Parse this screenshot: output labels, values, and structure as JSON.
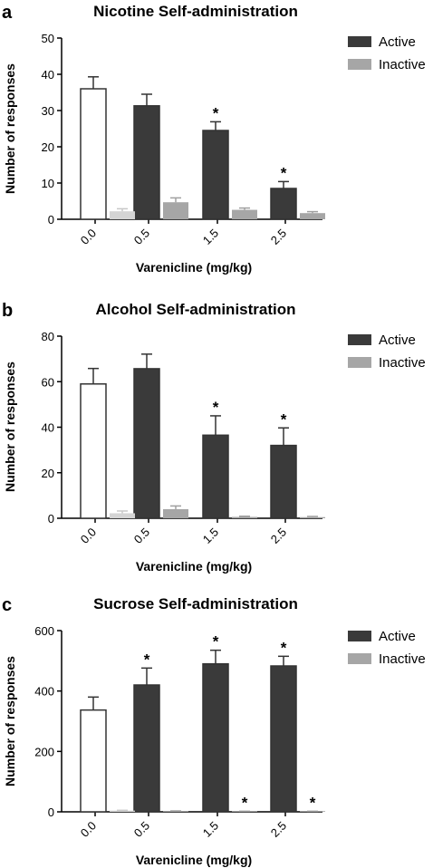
{
  "chart_data": [
    {
      "type": "bar",
      "panel": "a",
      "title": "Nicotine Self-administration",
      "xlabel": "Varenicline (mg/kg)",
      "ylabel": "Number of responses",
      "ylim": [
        0,
        50
      ],
      "yticks": [
        0,
        10,
        20,
        30,
        40,
        50
      ],
      "categories": [
        "0.0",
        "0.5",
        "1.5",
        "2.5"
      ],
      "legend": "right",
      "series": [
        {
          "name": "Active",
          "values": [
            36.0,
            31.3,
            24.5,
            8.5
          ],
          "errors": [
            3.3,
            3.2,
            2.4,
            1.9
          ],
          "significant": [
            false,
            false,
            true,
            true
          ]
        },
        {
          "name": "Inactive",
          "values": [
            2.2,
            4.7,
            2.6,
            1.7
          ],
          "errors": [
            0.7,
            1.2,
            0.5,
            0.4
          ],
          "significant": [
            false,
            false,
            false,
            false
          ]
        }
      ],
      "annotation_text": "*"
    },
    {
      "type": "bar",
      "panel": "b",
      "title": "Alcohol Self-administration",
      "xlabel": "Varenicline (mg/kg)",
      "ylabel": "Number of responses",
      "ylim": [
        0,
        80
      ],
      "yticks": [
        0,
        20,
        40,
        60,
        80
      ],
      "categories": [
        "0.0",
        "0.5",
        "1.5",
        "2.5"
      ],
      "legend": "right",
      "series": [
        {
          "name": "Active",
          "values": [
            59.0,
            65.7,
            36.5,
            32.0
          ],
          "errors": [
            6.8,
            6.4,
            8.5,
            7.7
          ],
          "significant": [
            false,
            false,
            true,
            true
          ]
        },
        {
          "name": "Inactive",
          "values": [
            2.2,
            4.0,
            0.6,
            0.5
          ],
          "errors": [
            1.0,
            1.4,
            0.3,
            0.3
          ],
          "significant": [
            false,
            false,
            false,
            false
          ]
        }
      ],
      "annotation_text": "*"
    },
    {
      "type": "bar",
      "panel": "c",
      "title": "Sucrose Self-administration",
      "xlabel": "Varenicline (mg/kg)",
      "ylabel": "Number of responses",
      "ylim": [
        0,
        600
      ],
      "yticks": [
        0,
        200,
        400,
        600
      ],
      "categories": [
        "0.0",
        "0.5",
        "1.5",
        "2.5"
      ],
      "legend": "right",
      "series": [
        {
          "name": "Active",
          "values": [
            337,
            420,
            490,
            483
          ],
          "errors": [
            43,
            56,
            45,
            32
          ],
          "significant": [
            false,
            true,
            true,
            true
          ]
        },
        {
          "name": "Inactive",
          "values": [
            4,
            2,
            1,
            1
          ],
          "errors": [
            1,
            1,
            1,
            1
          ],
          "significant": [
            false,
            false,
            true,
            true
          ]
        }
      ],
      "annotation_text": "*"
    }
  ],
  "colors": {
    "control_active_fill": "#ffffff",
    "control_inactive_fill": "#d4d4d4",
    "active_fill": "#3a3a3a",
    "inactive_fill": "#a6a6a6",
    "axis": "#000000"
  }
}
